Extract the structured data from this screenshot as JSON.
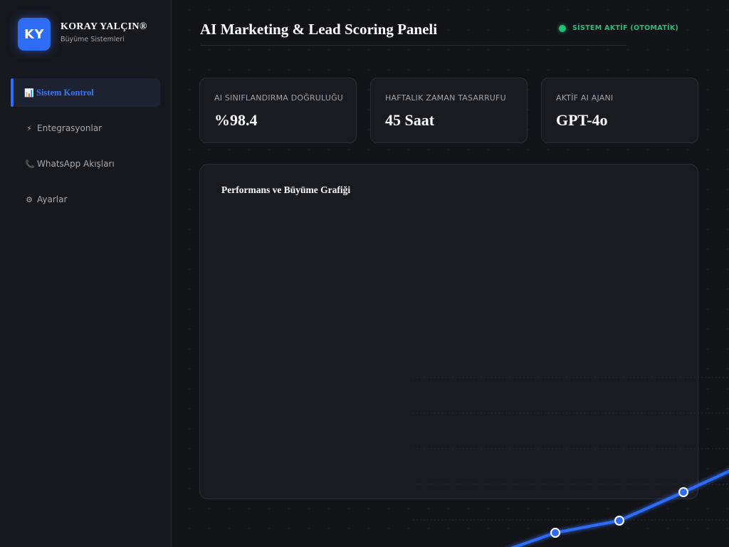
{
  "brand": {
    "initials": "KY",
    "name": "KORAY YALÇIN®",
    "subtitle": "Büyüme Sistemleri"
  },
  "sidebar": {
    "items": [
      {
        "icon": "📊",
        "icon_name": "bar-chart-icon",
        "label": "Sistem Kontrol",
        "active": true
      },
      {
        "icon": "⚡",
        "icon_name": "lightning-icon",
        "label": "Entegrasyonlar",
        "active": false
      },
      {
        "icon": "📞",
        "icon_name": "phone-icon",
        "label": "WhatsApp Akışları",
        "active": false
      },
      {
        "icon": "⚙",
        "icon_name": "gear-icon",
        "label": "Ayarlar",
        "active": false
      }
    ]
  },
  "header": {
    "title": "AI Marketing & Lead Scoring Paneli",
    "status": "SİSTEM AKTİF (OTOMATİK)"
  },
  "stats": [
    {
      "label": "AI SINIFLANDIRMA DOĞRULUĞU",
      "value": "%98.4"
    },
    {
      "label": "HAFTALIK ZAMAN TASARRUFU",
      "value": "45 Saat"
    },
    {
      "label": "AKTİF AI AJANI",
      "value": "GPT-4o"
    }
  ],
  "panel": {
    "title": "Performans ve Büyüme Grafiği"
  },
  "colors": {
    "accent": "#2f6cf5",
    "status": "#22c07a",
    "background": "#121317",
    "card": "#1a1b20"
  }
}
